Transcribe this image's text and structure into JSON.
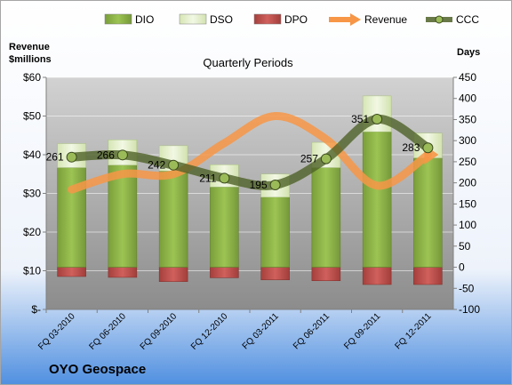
{
  "chart_data": {
    "type": "bar",
    "subtitle": "Quarterly Periods",
    "company": "OYO Geospace",
    "left_axis_title": [
      "Revenue",
      "$millions"
    ],
    "right_axis_title": "Days",
    "categories": [
      "FQ 03-2010",
      "FQ 06-2010",
      "FQ 09-2010",
      "FQ 12-2010",
      "FQ 03-2011",
      "FQ 06-2011",
      "FQ 09-2011",
      "FQ 12-2011"
    ],
    "left_ylim": [
      0,
      60
    ],
    "left_ticks": [
      "$-",
      "$10",
      "$20",
      "$30",
      "$40",
      "$50",
      "$60"
    ],
    "right_ylim": [
      -100,
      450
    ],
    "right_ticks": [
      "-100",
      "-50",
      "0",
      "50",
      "100",
      "150",
      "200",
      "250",
      "300",
      "350",
      "400",
      "450"
    ],
    "series": [
      {
        "name": "DIO",
        "kind": "bar",
        "axis": "right",
        "color": "#8db34a",
        "values": [
          236,
          242,
          228,
          190,
          166,
          236,
          321,
          259
        ]
      },
      {
        "name": "DSO",
        "kind": "bar",
        "axis": "right",
        "color": "#e3efc7",
        "values": [
          57,
          60,
          60,
          53,
          55,
          60,
          85,
          59
        ]
      },
      {
        "name": "DPO",
        "kind": "bar",
        "axis": "right",
        "color": "#c0504d",
        "values": [
          -22,
          -24,
          -34,
          -25,
          -30,
          -32,
          -41,
          -41
        ]
      },
      {
        "name": "Revenue",
        "kind": "line",
        "axis": "left",
        "color": "#f79646",
        "values": [
          31,
          35,
          35,
          43,
          50,
          44,
          32,
          40
        ]
      },
      {
        "name": "CCC",
        "kind": "line",
        "axis": "right",
        "color": "#4f6228",
        "values": [
          261,
          266,
          242,
          211,
          195,
          257,
          351,
          283
        ]
      }
    ],
    "data_labels": [
      "261",
      "266",
      "242",
      "211",
      "195",
      "257",
      "351",
      "283"
    ],
    "grid": true,
    "legend": "top"
  }
}
